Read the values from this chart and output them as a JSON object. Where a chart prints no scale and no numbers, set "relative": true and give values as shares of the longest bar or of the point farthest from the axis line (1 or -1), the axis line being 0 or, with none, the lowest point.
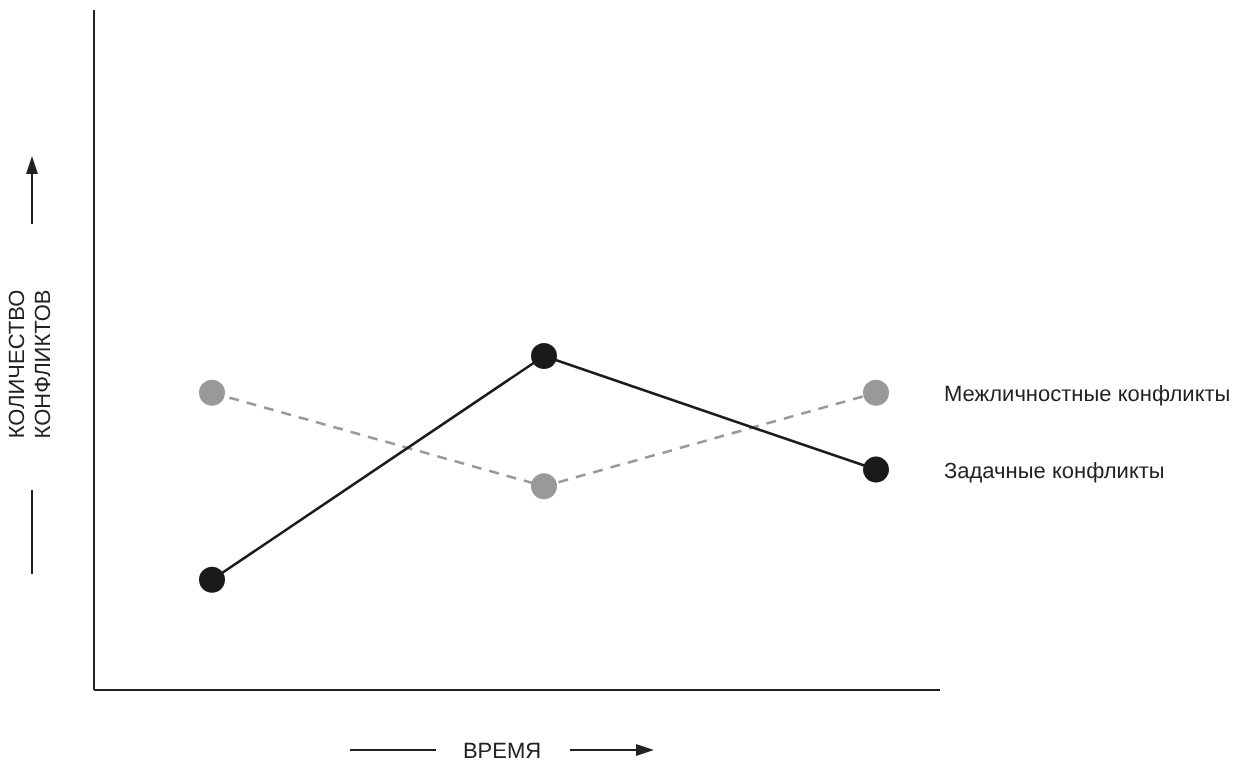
{
  "chart_data": {
    "type": "line",
    "relative": true,
    "xlabel": "ВРЕМЯ",
    "ylabel": "КОЛИЧЕСТВО КОНФЛИКТОВ",
    "categories": [
      null,
      null,
      null
    ],
    "marker": "circle",
    "legend": false,
    "series": [
      {
        "name": "Межличностные конфликты",
        "color": "#999999",
        "line_style": "dashed",
        "values": [
          0.89,
          0.61,
          0.89
        ]
      },
      {
        "name": "Задачные конфликты",
        "color": "#1a1a1a",
        "line_style": "solid",
        "values": [
          0.33,
          1,
          0.66
        ]
      }
    ]
  }
}
